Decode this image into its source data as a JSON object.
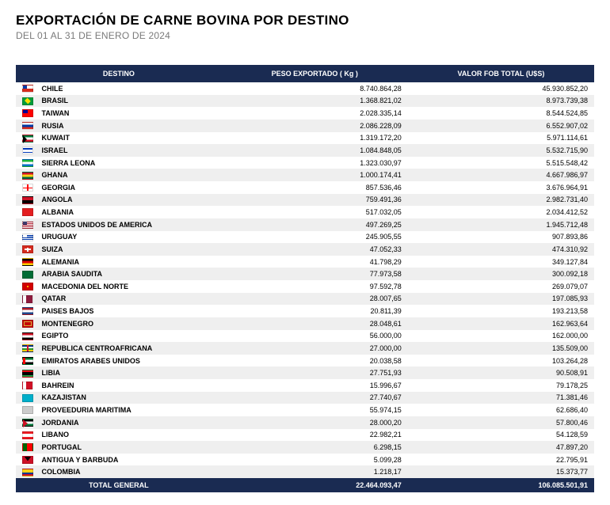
{
  "header": {
    "title": "EXPORTACIÓN DE CARNE BOVINA POR DESTINO",
    "subtitle": "DEL 01 AL 31 DE ENERO DE 2024"
  },
  "table": {
    "columns": [
      "DESTINO",
      "PESO EXPORTADO ( Kg )",
      "VALOR FOB TOTAL (U$S)"
    ],
    "header_bg": "#1a2b52",
    "header_fg": "#ffffff",
    "row_bg_even": "#ffffff",
    "row_bg_odd": "#efefef",
    "rows": [
      {
        "flag": "cl",
        "dest": "CHILE",
        "peso": "8.740.864,28",
        "valor": "45.930.852,20"
      },
      {
        "flag": "br",
        "dest": "BRASIL",
        "peso": "1.368.821,02",
        "valor": "8.973.739,38"
      },
      {
        "flag": "tw",
        "dest": "TAIWAN",
        "peso": "2.028.335,14",
        "valor": "8.544.524,85"
      },
      {
        "flag": "ru",
        "dest": "RUSIA",
        "peso": "2.086.228,09",
        "valor": "6.552.907,02"
      },
      {
        "flag": "kw",
        "dest": "KUWAIT",
        "peso": "1.319.172,20",
        "valor": "5.971.114,61"
      },
      {
        "flag": "il",
        "dest": "ISRAEL",
        "peso": "1.084.848,05",
        "valor": "5.532.715,90"
      },
      {
        "flag": "sl",
        "dest": "SIERRA LEONA",
        "peso": "1.323.030,97",
        "valor": "5.515.548,42"
      },
      {
        "flag": "gh",
        "dest": "GHANA",
        "peso": "1.000.174,41",
        "valor": "4.667.986,97"
      },
      {
        "flag": "ge",
        "dest": "GEORGIA",
        "peso": "857.536,46",
        "valor": "3.676.964,91"
      },
      {
        "flag": "ao",
        "dest": "ANGOLA",
        "peso": "759.491,36",
        "valor": "2.982.731,40"
      },
      {
        "flag": "al",
        "dest": "ALBANIA",
        "peso": "517.032,05",
        "valor": "2.034.412,52"
      },
      {
        "flag": "us",
        "dest": "ESTADOS UNIDOS DE AMERICA",
        "peso": "497.269,25",
        "valor": "1.945.712,48"
      },
      {
        "flag": "uy",
        "dest": "URUGUAY",
        "peso": "245.905,55",
        "valor": "907.893,86"
      },
      {
        "flag": "ch",
        "dest": "SUIZA",
        "peso": "47.052,33",
        "valor": "474.310,92"
      },
      {
        "flag": "de",
        "dest": "ALEMANIA",
        "peso": "41.798,29",
        "valor": "349.127,84"
      },
      {
        "flag": "sa",
        "dest": "ARABIA SAUDITA",
        "peso": "77.973,58",
        "valor": "300.092,18"
      },
      {
        "flag": "mk",
        "dest": "MACEDONIA DEL NORTE",
        "peso": "97.592,78",
        "valor": "269.079,07"
      },
      {
        "flag": "qa",
        "dest": "QATAR",
        "peso": "28.007,65",
        "valor": "197.085,93"
      },
      {
        "flag": "nl",
        "dest": "PAISES BAJOS",
        "peso": "20.811,39",
        "valor": "193.213,58"
      },
      {
        "flag": "me",
        "dest": "MONTENEGRO",
        "peso": "28.048,61",
        "valor": "162.963,64"
      },
      {
        "flag": "eg",
        "dest": "EGIPTO",
        "peso": "56.000,00",
        "valor": "162.000,00"
      },
      {
        "flag": "cf",
        "dest": "REPUBLICA CENTROAFRICANA",
        "peso": "27.000,00",
        "valor": "135.509,00"
      },
      {
        "flag": "ae",
        "dest": "EMIRATOS ARABES UNIDOS",
        "peso": "20.038,58",
        "valor": "103.264,28"
      },
      {
        "flag": "ly",
        "dest": "LIBIA",
        "peso": "27.751,93",
        "valor": "90.508,91"
      },
      {
        "flag": "bh",
        "dest": "BAHREIN",
        "peso": "15.996,67",
        "valor": "79.178,25"
      },
      {
        "flag": "kz",
        "dest": "KAZAJISTAN",
        "peso": "27.740,67",
        "valor": "71.381,46"
      },
      {
        "flag": "xx",
        "dest": "PROVEEDURIA MARITIMA",
        "peso": "55.974,15",
        "valor": "62.686,40"
      },
      {
        "flag": "jo",
        "dest": "JORDANIA",
        "peso": "28.000,20",
        "valor": "57.800,46"
      },
      {
        "flag": "lb",
        "dest": "LIBANO",
        "peso": "22.982,21",
        "valor": "54.128,59"
      },
      {
        "flag": "pt",
        "dest": "PORTUGAL",
        "peso": "6.298,15",
        "valor": "47.897,20"
      },
      {
        "flag": "ag",
        "dest": "ANTIGUA Y BARBUDA",
        "peso": "5.099,28",
        "valor": "22.795,91"
      },
      {
        "flag": "co",
        "dest": "COLOMBIA",
        "peso": "1.218,17",
        "valor": "15.373,77"
      }
    ],
    "total": {
      "label": "TOTAL GENERAL",
      "peso": "22.464.093,47",
      "valor": "106.085.501,91"
    }
  },
  "flags": {
    "cl": {
      "bg": "linear-gradient(to bottom, #ffffff 50%, #d52b1e 50%)",
      "extra": "cl"
    },
    "br": {
      "bg": "#009b3a",
      "extra": "br"
    },
    "tw": {
      "bg": "#fe0000",
      "extra": "tw"
    },
    "ru": {
      "bg": "linear-gradient(to bottom, #ffffff 33%, #0039a6 33%, #0039a6 66%, #d52b1e 66%)"
    },
    "kw": {
      "bg": "linear-gradient(to bottom, #007a3d 33%, #ffffff 33%, #ffffff 66%, #ce1126 66%)",
      "extra": "kw"
    },
    "il": {
      "bg": "#ffffff",
      "extra": "il"
    },
    "sl": {
      "bg": "linear-gradient(to bottom, #1eb53a 33%, #ffffff 33%, #ffffff 66%, #0072c6 66%)"
    },
    "gh": {
      "bg": "linear-gradient(to bottom, #ce1126 33%, #fcd116 33%, #fcd116 66%, #006b3f 66%)"
    },
    "ge": {
      "bg": "#ffffff",
      "extra": "ge"
    },
    "ao": {
      "bg": "linear-gradient(to bottom, #ce1126 50%, #000000 50%)"
    },
    "al": {
      "bg": "#e41e20"
    },
    "us": {
      "bg": "repeating-linear-gradient(to bottom, #b22234 0, #b22234 1px, #ffffff 1px, #ffffff 2px)",
      "extra": "us"
    },
    "uy": {
      "bg": "repeating-linear-gradient(to bottom, #ffffff 0, #ffffff 1.2px, #0038a8 1.2px, #0038a8 2.4px)",
      "extra": "uy"
    },
    "ch": {
      "bg": "#d52b1e",
      "extra": "ch"
    },
    "de": {
      "bg": "linear-gradient(to bottom, #000000 33%, #dd0000 33%, #dd0000 66%, #ffce00 66%)"
    },
    "sa": {
      "bg": "#006c35"
    },
    "mk": {
      "bg": "#d20000",
      "extra": "mk"
    },
    "qa": {
      "bg": "linear-gradient(to right, #ffffff 35%, #8d1b3d 35%)"
    },
    "nl": {
      "bg": "linear-gradient(to bottom, #ae1c28 33%, #ffffff 33%, #ffffff 66%, #21468b 66%)"
    },
    "me": {
      "bg": "#c40308",
      "extra": "me"
    },
    "eg": {
      "bg": "linear-gradient(to bottom, #ce1126 33%, #ffffff 33%, #ffffff 66%, #000000 66%)"
    },
    "cf": {
      "bg": "linear-gradient(to bottom, #003082 25%, #ffffff 25%, #ffffff 50%, #289728 50%, #289728 75%, #ffce00 75%)",
      "extra": "cf"
    },
    "ae": {
      "bg": "linear-gradient(to bottom, #00732f 33%, #ffffff 33%, #ffffff 66%, #000000 66%)",
      "extra": "ae"
    },
    "ly": {
      "bg": "linear-gradient(to bottom, #e70013 25%, #000000 25%, #000000 75%, #239e46 75%)"
    },
    "bh": {
      "bg": "linear-gradient(to right, #ffffff 35%, #ce1126 35%)"
    },
    "kz": {
      "bg": "#00afca"
    },
    "xx": {
      "bg": "#cccccc"
    },
    "jo": {
      "bg": "linear-gradient(to bottom, #000000 33%, #ffffff 33%, #ffffff 66%, #007a3d 66%)",
      "extra": "jo"
    },
    "lb": {
      "bg": "linear-gradient(to bottom, #ed1c24 25%, #ffffff 25%, #ffffff 75%, #ed1c24 75%)"
    },
    "pt": {
      "bg": "linear-gradient(to right, #006600 40%, #ff0000 40%)"
    },
    "ag": {
      "bg": "#ce1126",
      "extra": "ag"
    },
    "co": {
      "bg": "linear-gradient(to bottom, #fcd116 50%, #003893 50%, #003893 75%, #ce1126 75%)"
    }
  }
}
